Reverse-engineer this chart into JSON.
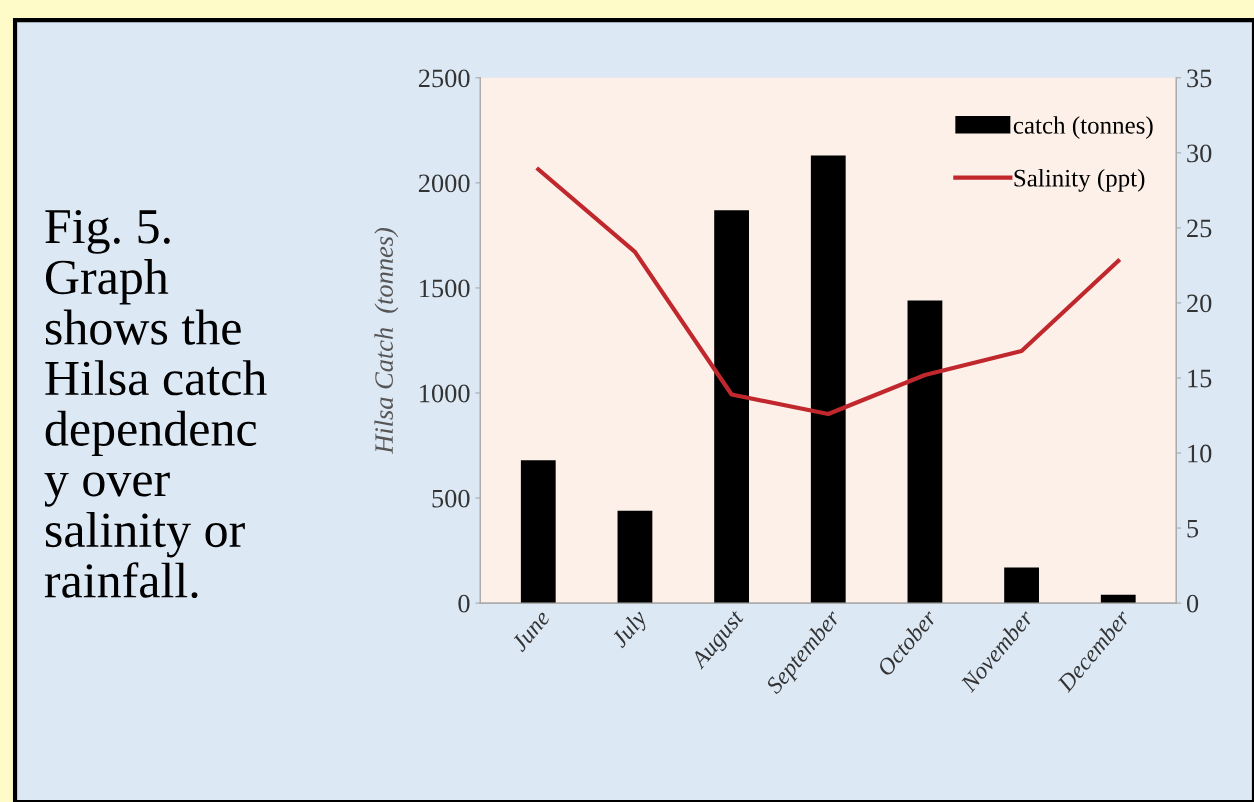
{
  "chart_data": {
    "type": "bar",
    "ylabel": "Hilsa Catch  (tonnes)",
    "annotations": [
      "Fig. 5.\nGraph\nshows the\nHilsa catch\ndependenc\ny over\nsalinity or\nrainfall."
    ],
    "categories": [
      "June",
      "July",
      "August",
      "September",
      "October",
      "November",
      "December"
    ],
    "series": [
      {
        "name": "catch (tonnes)",
        "color": "#000000",
        "values": [
          680,
          440,
          1870,
          2130,
          1440,
          170,
          40
        ]
      },
      {
        "name": "Salinity (ppt)",
        "type": "line",
        "axis": "y2",
        "color": "#c0282d",
        "values": [
          28.9,
          23.4,
          13.9,
          12.6,
          15.2,
          16.8,
          22.8
        ]
      }
    ],
    "ylim": [
      0,
      2500
    ],
    "yticks": [
      0,
      500,
      1000,
      1500,
      2000,
      2500
    ],
    "y2lim": [
      0,
      35
    ],
    "y2ticks": [
      0,
      5,
      10,
      15,
      20,
      25,
      30,
      35
    ],
    "grid": false,
    "legend": "top right",
    "marker": "none",
    "line_style": "solid"
  }
}
